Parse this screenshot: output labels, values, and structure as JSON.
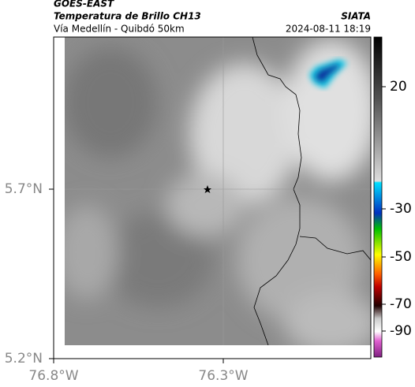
{
  "header": {
    "title": "GOES-EAST",
    "subtitle": "Temperatura de Brillo CH13",
    "region": "Vía Medellín - Quibdó 50km",
    "source": "SIATA",
    "timestamp": "2024-08-11 18:19"
  },
  "map": {
    "lat_ticks": [
      {
        "value": 5.2,
        "label": "5.2°N"
      },
      {
        "value": 5.7,
        "label": "5.7°N"
      }
    ],
    "lon_ticks": [
      {
        "value": -76.8,
        "label": "76.8°W"
      },
      {
        "value": -76.3,
        "label": "76.3°W"
      }
    ]
  },
  "colorbar": {
    "ticks": [
      20,
      -30,
      -50,
      -70,
      -90
    ]
  }
}
